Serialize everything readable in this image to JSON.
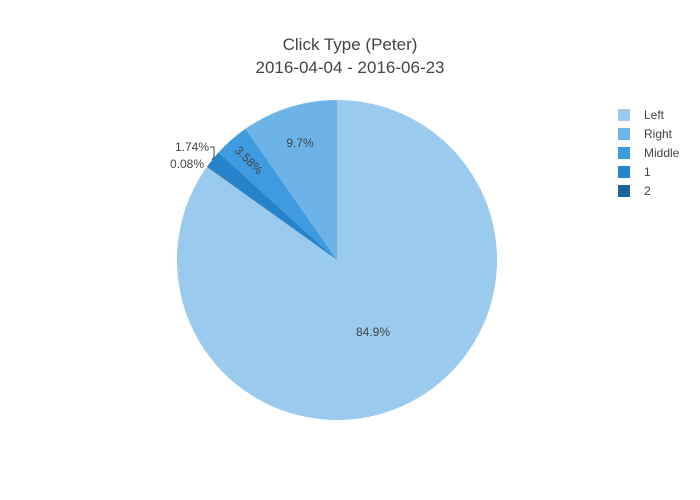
{
  "chart_data": {
    "type": "pie",
    "title": "Click Type (Peter)",
    "subtitle": "2016-04-04 - 2016-06-23",
    "legend_position": "top-right",
    "slices": [
      {
        "label": "Left",
        "value": 84.9,
        "display": "84.9%",
        "color": "#9ACAEE"
      },
      {
        "label": "Right",
        "value": 9.7,
        "display": "9.7%",
        "color": "#6CB4E8"
      },
      {
        "label": "Middle",
        "value": 3.58,
        "display": "3.58%",
        "color": "#3F9BE0"
      },
      {
        "label": "1",
        "value": 1.74,
        "display": "1.74%",
        "color": "#2583CB"
      },
      {
        "label": "2",
        "value": 0.08,
        "display": "0.08%",
        "color": "#1A6299"
      }
    ]
  }
}
